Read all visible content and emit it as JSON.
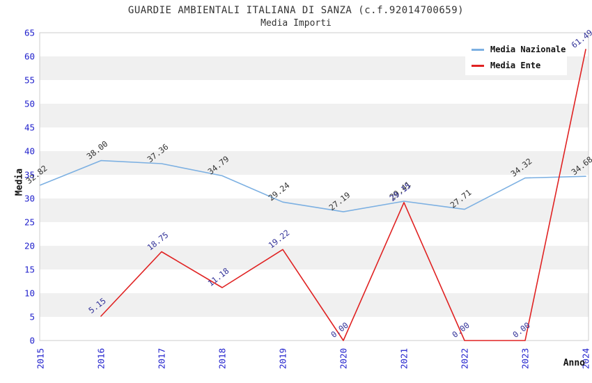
{
  "header": {
    "title": "GUARDIE AMBIENTALI ITALIANA DI SANZA (c.f.92014700659)",
    "subtitle": "Media Importi"
  },
  "colors": {
    "axis_tick_blue": "#1f1fcc",
    "nazionale_line": "#7cb0e2",
    "ente_line": "#e02222",
    "nazionale_label": "#333333",
    "ente_label": "#333399",
    "band_gray": "#f0f0f0",
    "band_white": "#ffffff",
    "plot_border": "#cccccc",
    "title_text": "#333333"
  },
  "chart_data": {
    "type": "line",
    "title": "GUARDIE AMBIENTALI ITALIANA DI SANZA (c.f.92014700659)",
    "subtitle": "Media Importi",
    "xlabel": "Anno",
    "ylabel": "Media",
    "categories": [
      "2015",
      "2016",
      "2017",
      "2018",
      "2019",
      "2020",
      "2021",
      "2022",
      "2023",
      "2024"
    ],
    "series": [
      {
        "name": "Media Nazionale",
        "color": "#7cb0e2",
        "label_color": "#333333",
        "values": [
          32.82,
          38.0,
          37.36,
          34.79,
          29.24,
          27.19,
          29.41,
          27.71,
          34.32,
          34.68
        ]
      },
      {
        "name": "Media Ente",
        "color": "#e02222",
        "label_color": "#333399",
        "values": [
          null,
          5.15,
          18.75,
          11.18,
          19.22,
          0.0,
          29.15,
          0.0,
          0.0,
          61.49
        ]
      }
    ],
    "ylim": [
      0,
      65
    ],
    "ytick_step": 5,
    "grid": "horizontal-bands-alternating",
    "legend_position": "top-right",
    "point_label_decimals": 2
  }
}
